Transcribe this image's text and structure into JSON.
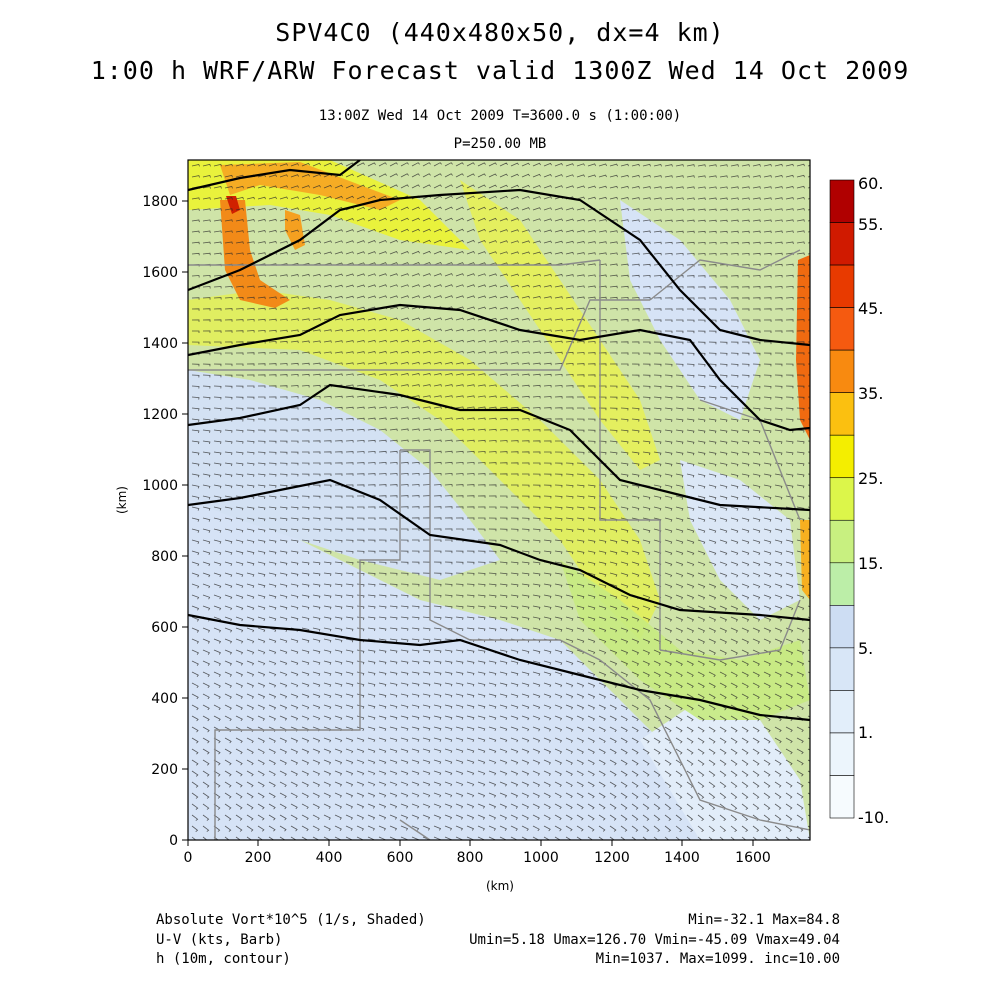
{
  "header": {
    "title_line1": "SPV4C0 (440x480x50, dx=4 km)",
    "title_line2": "1:00 h WRF/ARW Forecast valid 1300Z Wed 14 Oct 2009",
    "valid_time": "13:00Z Wed 14 Oct 2009     T=3600.0 s (1:00:00)",
    "level": "P=250.00 MB"
  },
  "axes": {
    "x_label": "(km)",
    "y_label": "(km)",
    "x_ticks": [
      "0",
      "200",
      "400",
      "600",
      "800",
      "1000",
      "1200",
      "1400",
      "1600"
    ],
    "y_ticks": [
      "0",
      "200",
      "400",
      "600",
      "800",
      "1000",
      "1200",
      "1400",
      "1600",
      "1800"
    ]
  },
  "colorbar": {
    "labels": [
      "60.",
      "55.",
      "45.",
      "35.",
      "25.",
      "15.",
      "5.",
      "1.",
      "-10."
    ],
    "colors": [
      "#b00000",
      "#d01a00",
      "#e83a00",
      "#f55a10",
      "#f88a10",
      "#fbc010",
      "#f4ee00",
      "#dcf64a",
      "#c8f080",
      "#bceea8",
      "#cdddf3",
      "#d8e6f7",
      "#e2eefa",
      "#ecf5fc",
      "#f6fbfe"
    ]
  },
  "map_colors": {
    "low": "#d4e2f6",
    "mid": "#c4ea88",
    "high": "#e4f23a",
    "peak": "#f08a20",
    "contour": "#000000",
    "borders": "#8a8a8a"
  },
  "footer": {
    "left_line1": "Absolute Vort*10^5 (1/s, Shaded)",
    "left_line2": "U-V (kts, Barb)",
    "left_line3": "h (10m, contour)",
    "right_line1": "Min=-32.1 Max=84.8",
    "right_line2": "Umin=5.18 Umax=126.70 Vmin=-45.09 Vmax=49.04",
    "right_line3": "Min=1037. Max=1099. inc=10.00"
  }
}
